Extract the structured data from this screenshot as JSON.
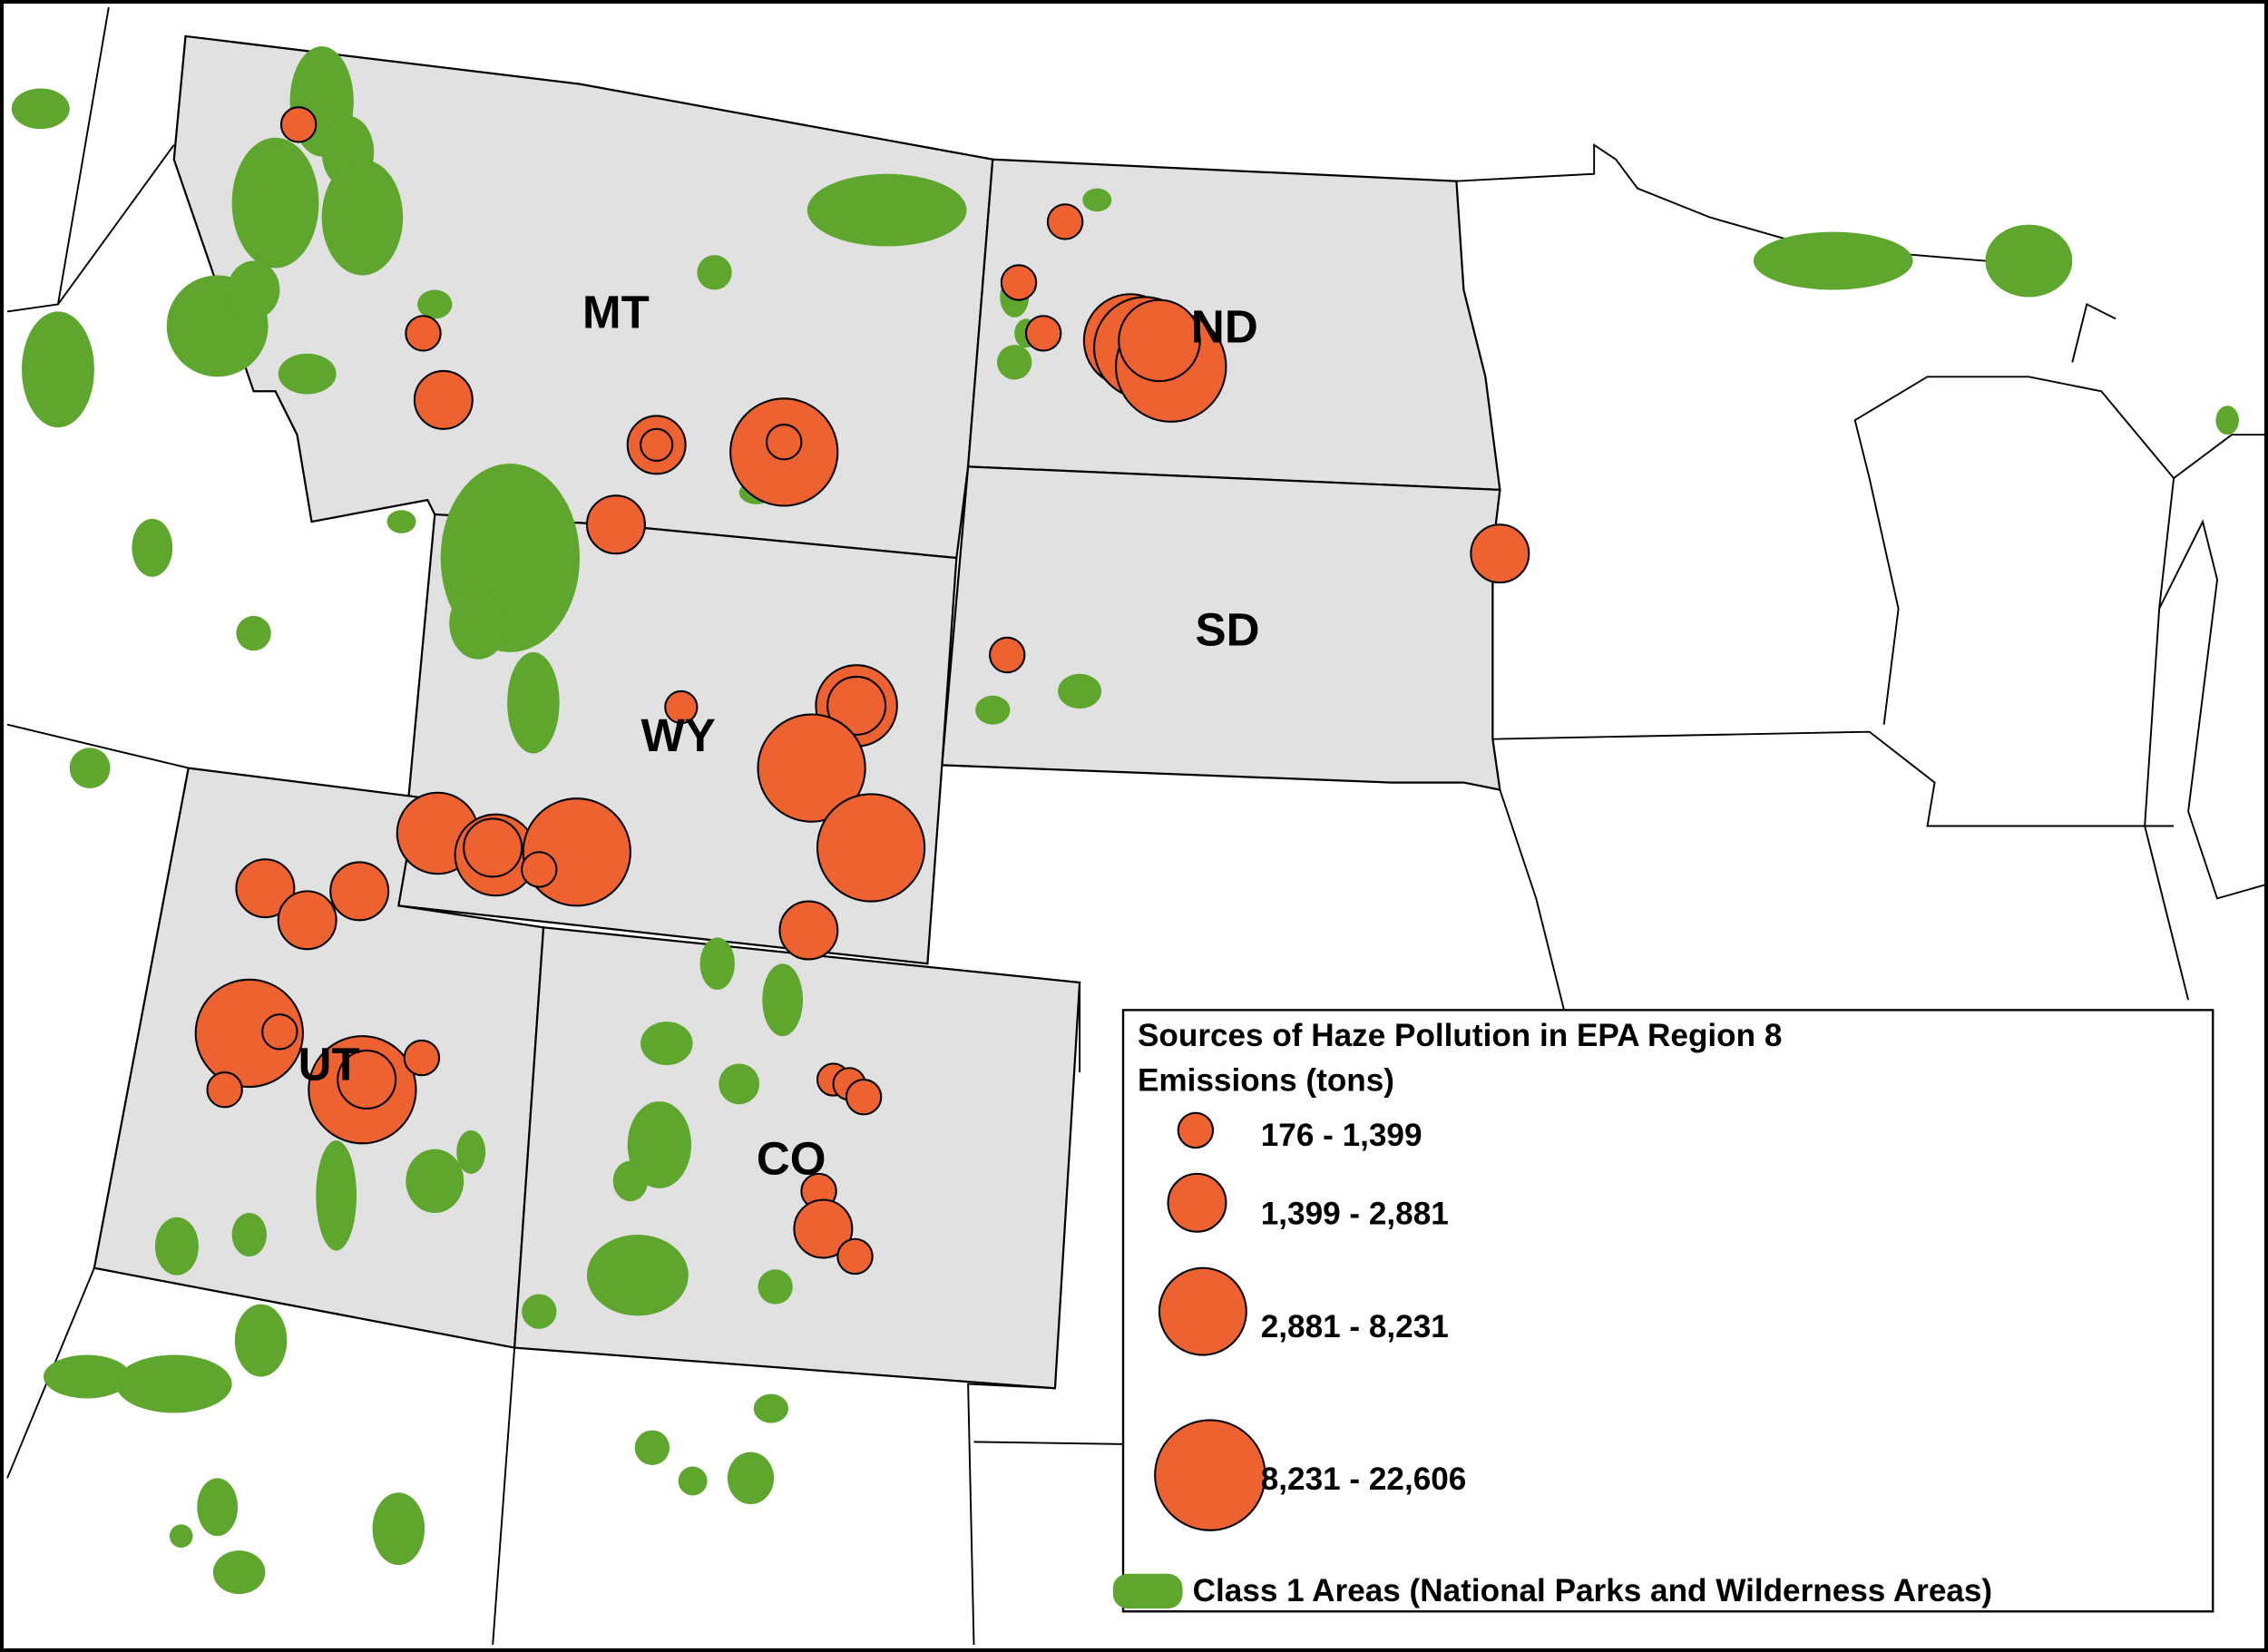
{
  "map": {
    "states": [
      "MT",
      "ND",
      "SD",
      "WY",
      "UT",
      "CO"
    ],
    "legend": {
      "title": "Sources of Haze Pollution in EPA Region 8",
      "subtitle": "Emissions (tons)",
      "classes": [
        "176 - 1,399",
        "1,399 - 2,881",
        "2,881 - 8,231",
        "8,231 - 22,606"
      ],
      "class1_areas": "Class 1 Areas (National Parks and Wilderness Areas)"
    }
  }
}
